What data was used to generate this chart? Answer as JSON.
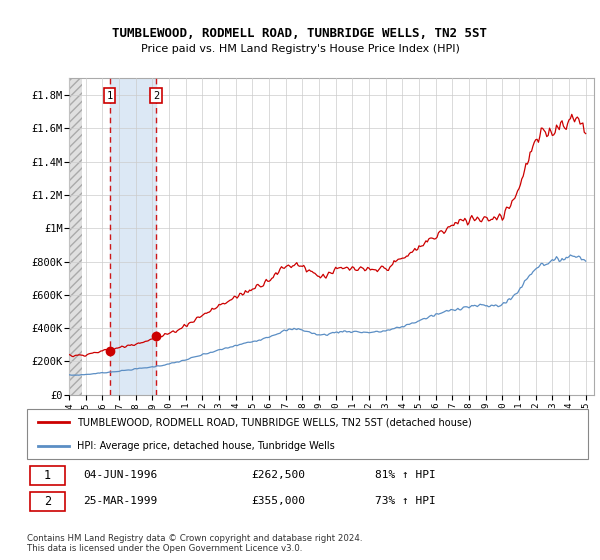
{
  "title": "TUMBLEWOOD, RODMELL ROAD, TUNBRIDGE WELLS, TN2 5ST",
  "subtitle": "Price paid vs. HM Land Registry's House Price Index (HPI)",
  "ylim": [
    0,
    1900000
  ],
  "xlim_start": 1994.0,
  "xlim_end": 2025.5,
  "yticks": [
    0,
    200000,
    400000,
    600000,
    800000,
    1000000,
    1200000,
    1400000,
    1600000,
    1800000
  ],
  "ytick_labels": [
    "£0",
    "£200K",
    "£400K",
    "£600K",
    "£800K",
    "£1M",
    "£1.2M",
    "£1.4M",
    "£1.6M",
    "£1.8M"
  ],
  "xticks": [
    1994,
    1995,
    1996,
    1997,
    1998,
    1999,
    2000,
    2001,
    2002,
    2003,
    2004,
    2005,
    2006,
    2007,
    2008,
    2009,
    2010,
    2011,
    2012,
    2013,
    2014,
    2015,
    2016,
    2017,
    2018,
    2019,
    2020,
    2021,
    2022,
    2023,
    2024,
    2025
  ],
  "sale1_year": 1996.43,
  "sale1_value": 262500,
  "sale2_year": 1999.23,
  "sale2_value": 355000,
  "hpi_color": "#5b8ec4",
  "property_color": "#cc0000",
  "legend_property": "TUMBLEWOOD, RODMELL ROAD, TUNBRIDGE WELLS, TN2 5ST (detached house)",
  "legend_hpi": "HPI: Average price, detached house, Tunbridge Wells",
  "table_row1": [
    "1",
    "04-JUN-1996",
    "£262,500",
    "81% ↑ HPI"
  ],
  "table_row2": [
    "2",
    "25-MAR-1999",
    "£355,000",
    "73% ↑ HPI"
  ],
  "footer": "Contains HM Land Registry data © Crown copyright and database right 2024.\nThis data is licensed under the Open Government Licence v3.0.",
  "shaded_region_color": "#dce8f5",
  "grid_color": "#cccccc",
  "hatch_color": "#cccccc"
}
